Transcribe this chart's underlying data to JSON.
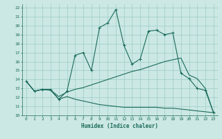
{
  "xlabel": "Humidex (Indice chaleur)",
  "bg_color": "#cce8e4",
  "grid_color": "#99ccc6",
  "line_color": "#1a6b5a",
  "xlim": [
    -0.5,
    23.5
  ],
  "ylim": [
    10,
    22.4
  ],
  "xticks": [
    0,
    1,
    2,
    3,
    4,
    5,
    6,
    7,
    8,
    9,
    10,
    11,
    12,
    13,
    14,
    15,
    16,
    17,
    18,
    19,
    20,
    21,
    22,
    23
  ],
  "yticks": [
    10,
    11,
    12,
    13,
    14,
    15,
    16,
    17,
    18,
    19,
    20,
    21,
    22
  ],
  "line1_x": [
    0,
    1,
    2,
    3,
    4,
    5,
    6,
    7,
    8,
    9,
    10,
    11,
    12,
    13,
    14,
    15,
    16,
    17,
    18,
    19,
    20,
    21,
    22,
    23
  ],
  "line1_y": [
    13.8,
    12.7,
    12.9,
    12.9,
    11.8,
    12.7,
    16.7,
    17.0,
    15.0,
    19.8,
    20.3,
    21.8,
    17.8,
    15.7,
    16.3,
    19.4,
    19.5,
    19.0,
    19.2,
    14.7,
    14.1,
    13.0,
    12.8,
    10.3
  ],
  "line2_x": [
    0,
    1,
    2,
    3,
    4,
    5,
    6,
    7,
    8,
    9,
    10,
    11,
    12,
    13,
    14,
    15,
    16,
    17,
    18,
    19,
    20,
    21,
    22,
    23
  ],
  "line2_y": [
    13.8,
    12.7,
    12.9,
    12.8,
    12.1,
    12.6,
    12.9,
    13.1,
    13.4,
    13.7,
    14.0,
    14.3,
    14.6,
    14.9,
    15.1,
    15.4,
    15.7,
    16.0,
    16.2,
    16.4,
    14.5,
    14.1,
    13.0,
    10.3
  ],
  "line3_x": [
    0,
    1,
    2,
    3,
    4,
    5,
    6,
    7,
    8,
    9,
    10,
    11,
    12,
    13,
    14,
    15,
    16,
    17,
    18,
    19,
    20,
    21,
    22,
    23
  ],
  "line3_y": [
    13.8,
    12.7,
    12.9,
    12.8,
    11.8,
    12.1,
    11.8,
    11.6,
    11.4,
    11.2,
    11.1,
    11.0,
    10.9,
    10.9,
    10.9,
    10.9,
    10.9,
    10.8,
    10.8,
    10.7,
    10.6,
    10.5,
    10.4,
    10.3
  ]
}
